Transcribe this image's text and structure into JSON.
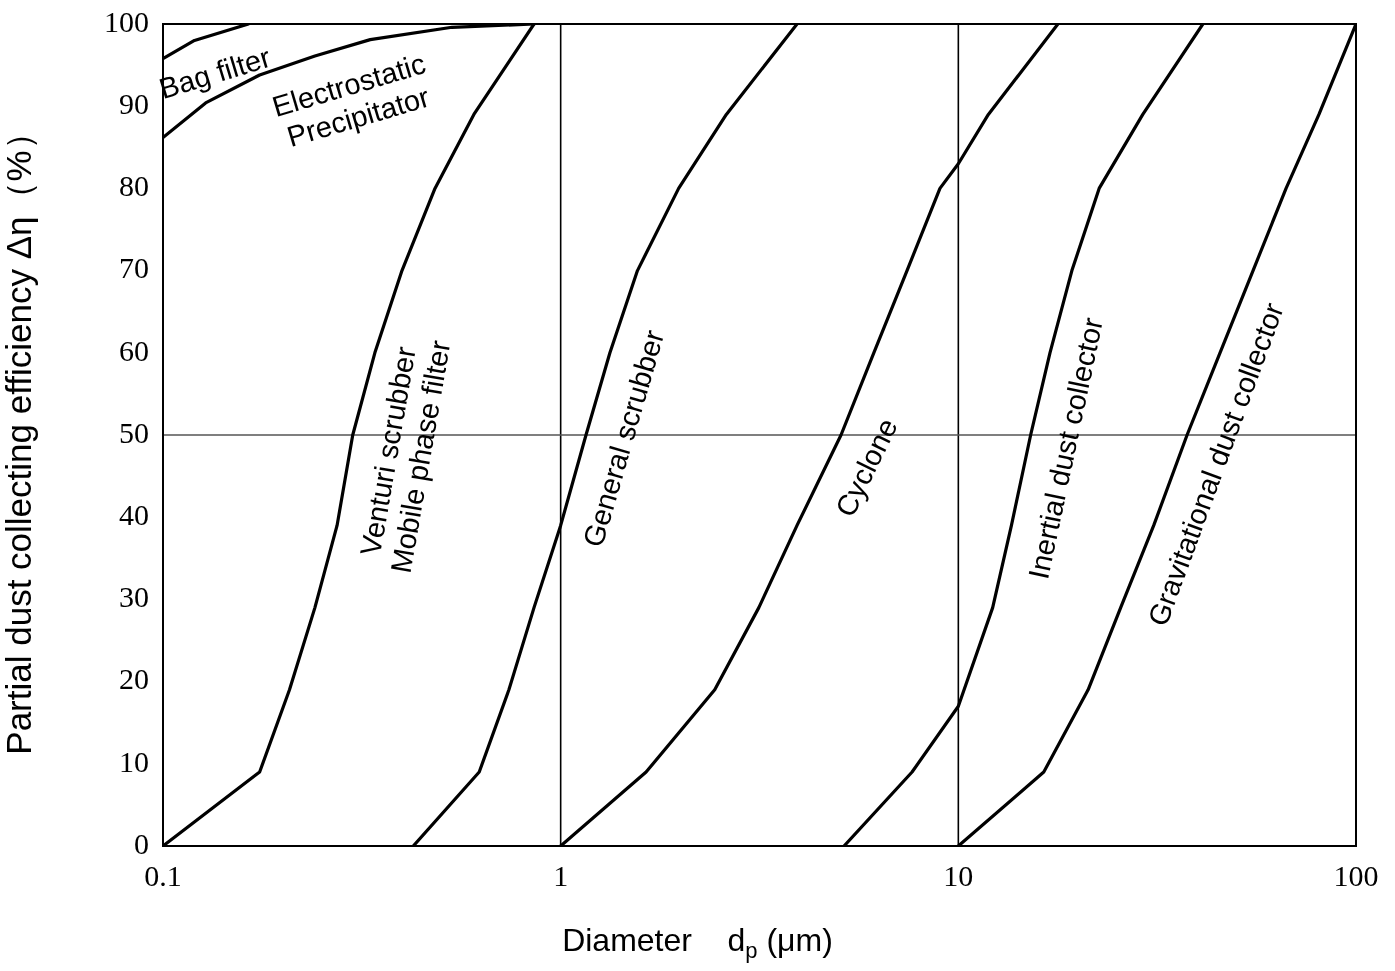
{
  "chart_data": {
    "type": "line",
    "xlabel": "Diameter    d$_{p}$ (μm)",
    "ylabel": "Partial dust collecting efficiency Δη（%）",
    "log": "x",
    "xlim": [
      0.1,
      100
    ],
    "xticks": [
      0.1,
      1,
      10,
      100
    ],
    "ylim": [
      0,
      100
    ],
    "yticks": [
      0,
      10,
      20,
      30,
      40,
      50,
      60,
      70,
      80,
      90,
      100
    ],
    "grid": false,
    "legend": false,
    "marker": "none",
    "line_style": "solid",
    "series": [
      {
        "name": "Bag filter",
        "color": "#000000",
        "x": [
          0.1,
          0.12,
          0.164
        ],
        "values": [
          95.8,
          98,
          100
        ]
      },
      {
        "name": "Electrostatic\nPrecipitator",
        "color": "#000000",
        "x": [
          0.1,
          0.128,
          0.175,
          0.241,
          0.332,
          0.533,
          0.857
        ],
        "values": [
          86.2,
          90.4,
          93.8,
          96.1,
          98.1,
          99.6,
          100
        ]
      },
      {
        "name": "Venturi scrubber\nMobile phase filter",
        "color": "#000000",
        "x": [
          0.1,
          0.175,
          0.208,
          0.241,
          0.274,
          0.3,
          0.341,
          0.399,
          0.483,
          0.605,
          0.857
        ],
        "values": [
          0,
          9,
          19,
          29,
          39,
          50,
          60,
          70,
          80,
          89,
          100
        ]
      },
      {
        "name": "General scrubber",
        "color": "#000000",
        "x": [
          0.426,
          0.624,
          0.741,
          0.857,
          1,
          1.158,
          1.33,
          1.56,
          1.98,
          2.61,
          3.93
        ],
        "values": [
          0,
          9,
          19,
          29,
          39,
          50,
          60,
          70,
          80,
          89,
          100
        ]
      },
      {
        "name": "Cyclone",
        "color": "#000000",
        "x": [
          1,
          1.64,
          2.44,
          3.15,
          3.93,
          5.07,
          6.13,
          7.43,
          8.99,
          10,
          11.9,
          17.8
        ],
        "values": [
          0,
          9,
          19,
          29,
          39,
          50,
          60,
          70,
          80,
          83,
          89,
          100
        ]
      },
      {
        "name": "Inertial dust collector",
        "color": "#000000",
        "x": [
          5.16,
          7.65,
          10,
          12.2,
          13.6,
          15.2,
          17,
          19.3,
          22.6,
          29.1,
          41.2
        ],
        "values": [
          0,
          9,
          17,
          29,
          39,
          50,
          60,
          70,
          80,
          89,
          100
        ]
      },
      {
        "name": "Gravitational dust collector",
        "color": "#000000",
        "x": [
          10,
          16.4,
          21.2,
          25.6,
          31,
          37.6,
          45.5,
          55.1,
          66.7,
          80.7,
          100
        ],
        "values": [
          0,
          9,
          19,
          29,
          39,
          50,
          60,
          70,
          80,
          89,
          100
        ]
      }
    ],
    "ref_lines": [
      {
        "axis": "x",
        "value": 1,
        "color": "#000000"
      },
      {
        "axis": "x",
        "value": 10,
        "color": "#000000"
      },
      {
        "axis": "y",
        "value": 50,
        "color": "#555555"
      }
    ]
  }
}
